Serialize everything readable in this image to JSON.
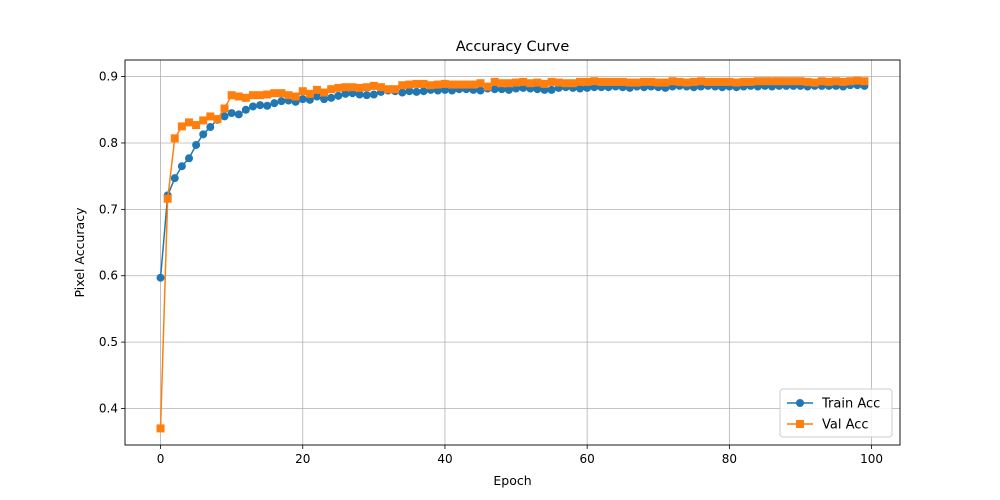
{
  "chart_data": {
    "type": "line",
    "title": "Accuracy Curve",
    "xlabel": "Epoch",
    "ylabel": "Pixel Accuracy",
    "xlim": [
      -5,
      104
    ],
    "ylim": [
      0.345,
      0.925
    ],
    "xticks": [
      0,
      20,
      40,
      60,
      80,
      100
    ],
    "yticks": [
      0.4,
      0.5,
      0.6,
      0.7,
      0.8,
      0.9
    ],
    "xtick_labels": [
      "0",
      "20",
      "40",
      "60",
      "80",
      "100"
    ],
    "ytick_labels": [
      "0.4",
      "0.5",
      "0.6",
      "0.7",
      "0.8",
      "0.9"
    ],
    "grid": true,
    "legend_position": "lower-right",
    "series": [
      {
        "name": "Train Acc",
        "color": "#1f77b4",
        "marker": "circle",
        "x": [
          0,
          1,
          2,
          3,
          4,
          5,
          6,
          7,
          8,
          9,
          10,
          11,
          12,
          13,
          14,
          15,
          16,
          17,
          18,
          19,
          20,
          21,
          22,
          23,
          24,
          25,
          26,
          27,
          28,
          29,
          30,
          31,
          32,
          33,
          34,
          35,
          36,
          37,
          38,
          39,
          40,
          41,
          42,
          43,
          44,
          45,
          46,
          47,
          48,
          49,
          50,
          51,
          52,
          53,
          54,
          55,
          56,
          57,
          58,
          59,
          60,
          61,
          62,
          63,
          64,
          65,
          66,
          67,
          68,
          69,
          70,
          71,
          72,
          73,
          74,
          75,
          76,
          77,
          78,
          79,
          80,
          81,
          82,
          83,
          84,
          85,
          86,
          87,
          88,
          89,
          90,
          91,
          92,
          93,
          94,
          95,
          96,
          97,
          98,
          99
        ],
        "values": [
          0.597,
          0.721,
          0.747,
          0.765,
          0.777,
          0.797,
          0.813,
          0.824,
          0.835,
          0.84,
          0.845,
          0.843,
          0.85,
          0.855,
          0.857,
          0.856,
          0.86,
          0.863,
          0.864,
          0.862,
          0.866,
          0.865,
          0.87,
          0.866,
          0.868,
          0.871,
          0.874,
          0.875,
          0.873,
          0.872,
          0.873,
          0.877,
          0.879,
          0.878,
          0.876,
          0.878,
          0.877,
          0.878,
          0.88,
          0.879,
          0.88,
          0.879,
          0.881,
          0.881,
          0.88,
          0.879,
          0.882,
          0.881,
          0.881,
          0.88,
          0.882,
          0.883,
          0.882,
          0.881,
          0.88,
          0.88,
          0.883,
          0.884,
          0.883,
          0.882,
          0.883,
          0.884,
          0.884,
          0.884,
          0.885,
          0.884,
          0.883,
          0.885,
          0.884,
          0.885,
          0.884,
          0.883,
          0.885,
          0.886,
          0.885,
          0.884,
          0.885,
          0.886,
          0.885,
          0.884,
          0.885,
          0.884,
          0.885,
          0.886,
          0.885,
          0.886,
          0.885,
          0.886,
          0.886,
          0.886,
          0.886,
          0.885,
          0.886,
          0.886,
          0.886,
          0.886,
          0.885,
          0.887,
          0.887,
          0.886
        ]
      },
      {
        "name": "Val Acc",
        "color": "#ff7f0e",
        "marker": "square",
        "x": [
          0,
          1,
          2,
          3,
          4,
          5,
          6,
          7,
          8,
          9,
          10,
          11,
          12,
          13,
          14,
          15,
          16,
          17,
          18,
          19,
          20,
          21,
          22,
          23,
          24,
          25,
          26,
          27,
          28,
          29,
          30,
          31,
          32,
          33,
          34,
          35,
          36,
          37,
          38,
          39,
          40,
          41,
          42,
          43,
          44,
          45,
          46,
          47,
          48,
          49,
          50,
          51,
          52,
          53,
          54,
          55,
          56,
          57,
          58,
          59,
          60,
          61,
          62,
          63,
          64,
          65,
          66,
          67,
          68,
          69,
          70,
          71,
          72,
          73,
          74,
          75,
          76,
          77,
          78,
          79,
          80,
          81,
          82,
          83,
          84,
          85,
          86,
          87,
          88,
          89,
          90,
          91,
          92,
          93,
          94,
          95,
          96,
          97,
          98,
          99
        ],
        "values": [
          0.37,
          0.716,
          0.807,
          0.825,
          0.831,
          0.827,
          0.834,
          0.84,
          0.836,
          0.852,
          0.872,
          0.87,
          0.868,
          0.872,
          0.872,
          0.873,
          0.875,
          0.875,
          0.872,
          0.87,
          0.878,
          0.874,
          0.88,
          0.876,
          0.881,
          0.883,
          0.884,
          0.884,
          0.883,
          0.884,
          0.886,
          0.884,
          0.881,
          0.881,
          0.887,
          0.888,
          0.889,
          0.889,
          0.887,
          0.888,
          0.889,
          0.888,
          0.888,
          0.888,
          0.888,
          0.89,
          0.885,
          0.892,
          0.89,
          0.89,
          0.891,
          0.892,
          0.89,
          0.891,
          0.889,
          0.892,
          0.891,
          0.89,
          0.89,
          0.892,
          0.892,
          0.893,
          0.892,
          0.892,
          0.892,
          0.892,
          0.891,
          0.891,
          0.892,
          0.892,
          0.891,
          0.891,
          0.893,
          0.892,
          0.891,
          0.892,
          0.893,
          0.892,
          0.892,
          0.892,
          0.892,
          0.891,
          0.892,
          0.892,
          0.893,
          0.893,
          0.893,
          0.893,
          0.893,
          0.893,
          0.893,
          0.892,
          0.891,
          0.893,
          0.892,
          0.893,
          0.892,
          0.893,
          0.894,
          0.893
        ]
      }
    ]
  }
}
